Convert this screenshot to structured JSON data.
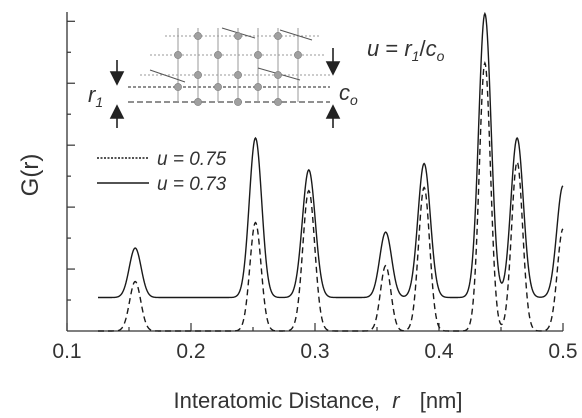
{
  "chart_data": {
    "type": "line",
    "title": "",
    "xlabel": "Interatomic Distance,",
    "xlabel_var": "r",
    "xlabel_unit": "[nm]",
    "ylabel": "G(r)",
    "xlim": [
      0.1,
      0.5
    ],
    "x_ticks": [
      "0.1",
      "0.2",
      "0.3",
      "0.4",
      "0.5"
    ],
    "y_ticks_labeled": false,
    "grid": false,
    "legend_position": "left",
    "series": [
      {
        "name": "u = 0.75",
        "style": "dashed",
        "baseline": 0.0,
        "peaks": [
          {
            "x": 0.155,
            "height": 0.155,
            "width": 0.0045
          },
          {
            "x": 0.252,
            "height": 0.34,
            "width": 0.0045
          },
          {
            "x": 0.295,
            "height": 0.44,
            "width": 0.0048
          },
          {
            "x": 0.357,
            "height": 0.205,
            "width": 0.0042
          },
          {
            "x": 0.388,
            "height": 0.45,
            "width": 0.0045
          },
          {
            "x": 0.437,
            "height": 0.84,
            "width": 0.0045
          },
          {
            "x": 0.463,
            "height": 0.53,
            "width": 0.0045
          },
          {
            "x": 0.5,
            "height": 0.32,
            "width": 0.0045
          }
        ]
      },
      {
        "name": "u = 0.73",
        "style": "solid",
        "baseline": 0.105,
        "peaks": [
          {
            "x": 0.155,
            "height": 0.155,
            "width": 0.0048
          },
          {
            "x": 0.252,
            "height": 0.5,
            "width": 0.005
          },
          {
            "x": 0.295,
            "height": 0.4,
            "width": 0.0052
          },
          {
            "x": 0.357,
            "height": 0.205,
            "width": 0.0048
          },
          {
            "x": 0.388,
            "height": 0.42,
            "width": 0.005
          },
          {
            "x": 0.437,
            "height": 0.89,
            "width": 0.005
          },
          {
            "x": 0.463,
            "height": 0.5,
            "width": 0.005
          },
          {
            "x": 0.5,
            "height": 0.35,
            "width": 0.005
          }
        ]
      }
    ],
    "annotations": {
      "formula": {
        "u": "u",
        "eq": " = ",
        "r": "r",
        "r_sub": "1",
        "slash": "/",
        "c": "c",
        "c_sub": "o"
      },
      "r1": {
        "r": "r",
        "sub": "1"
      },
      "co": {
        "c": "c",
        "sub": "o"
      }
    }
  },
  "colors": {
    "line": "#1a1a1a",
    "axis": "#333333",
    "inset": "#999999",
    "atom": "#a0a0a0"
  }
}
